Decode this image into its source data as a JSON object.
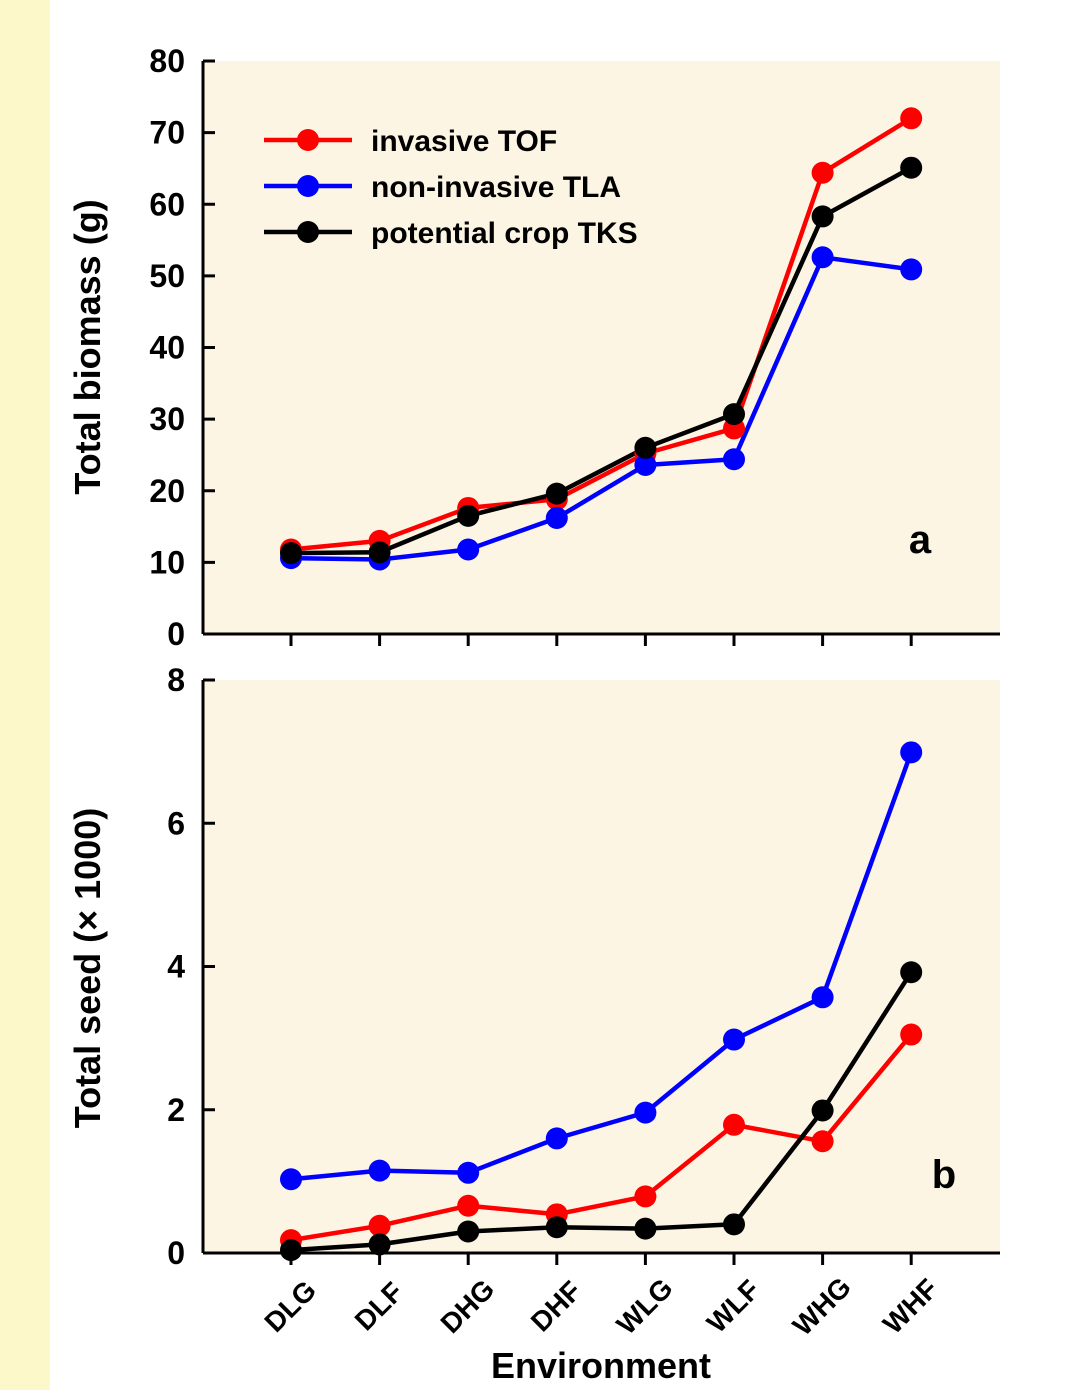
{
  "colors": {
    "page_bg": "#fdf8c9",
    "plot_bg": "#fcf5e4",
    "axis": "#000000"
  },
  "chart_data": [
    {
      "type": "line",
      "panel_label": "a",
      "ylabel": "Total biomass (g)",
      "xlabel": "",
      "ylim": [
        0,
        80
      ],
      "yticks": [
        0,
        10,
        20,
        30,
        40,
        50,
        60,
        70,
        80
      ],
      "categories": [
        "DLG",
        "DLF",
        "DHG",
        "DHF",
        "WLG",
        "WLF",
        "WHG",
        "WHF"
      ],
      "legend_position": "top-left",
      "series": [
        {
          "name": "invasive TOF",
          "color": "#ff0000",
          "values": [
            11.8,
            13.0,
            17.6,
            18.8,
            25.2,
            28.7,
            64.4,
            72.0
          ]
        },
        {
          "name": "non-invasive TLA",
          "color": "#0000ff",
          "values": [
            10.6,
            10.4,
            11.8,
            16.2,
            23.6,
            24.4,
            52.6,
            50.9
          ]
        },
        {
          "name": "potential crop TKS",
          "color": "#000000",
          "values": [
            11.3,
            11.4,
            16.5,
            19.6,
            26.0,
            30.7,
            58.3,
            65.1
          ]
        }
      ]
    },
    {
      "type": "line",
      "panel_label": "b",
      "ylabel": "Total seed (× 1000)",
      "xlabel": "Environment",
      "ylim": [
        0,
        8
      ],
      "yticks": [
        0,
        2,
        4,
        6,
        8
      ],
      "categories": [
        "DLG",
        "DLF",
        "DHG",
        "DHF",
        "WLG",
        "WLF",
        "WHG",
        "WHF"
      ],
      "series": [
        {
          "name": "invasive TOF",
          "color": "#ff0000",
          "values": [
            0.18,
            0.38,
            0.66,
            0.54,
            0.79,
            1.79,
            1.56,
            3.05
          ]
        },
        {
          "name": "non-invasive TLA",
          "color": "#0000ff",
          "values": [
            1.03,
            1.15,
            1.12,
            1.6,
            1.96,
            2.98,
            3.57,
            6.99
          ]
        },
        {
          "name": "potential crop TKS",
          "color": "#000000",
          "values": [
            0.04,
            0.12,
            0.3,
            0.36,
            0.34,
            0.4,
            1.99,
            3.92
          ]
        }
      ]
    }
  ]
}
